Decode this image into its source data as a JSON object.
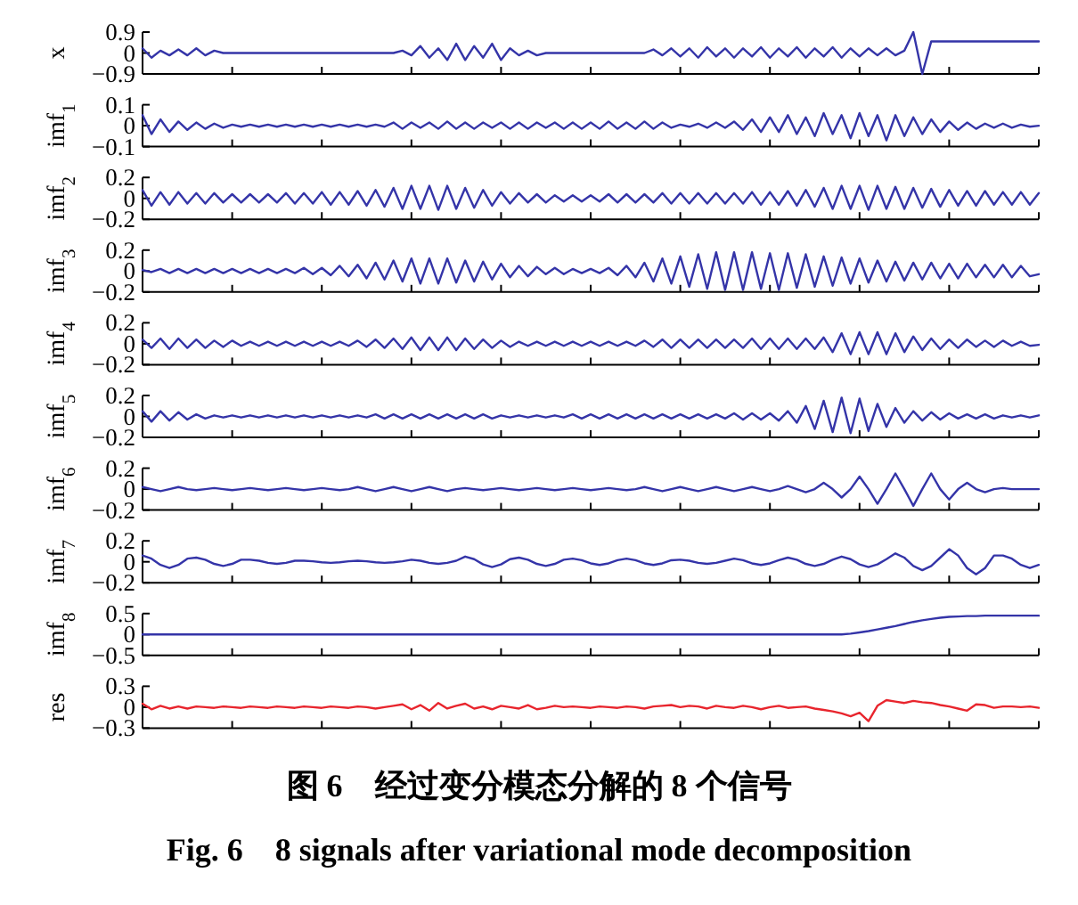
{
  "chart_data": [
    {
      "type": "line",
      "ylabel": "x",
      "categories": [
        null,
        null,
        null,
        null,
        null,
        null,
        null,
        null,
        null,
        null,
        null,
        null,
        null,
        null,
        null,
        null,
        null,
        null,
        null,
        null,
        null,
        null,
        null,
        null,
        null,
        null,
        null,
        null,
        null,
        null,
        null,
        null,
        null,
        null,
        null,
        null,
        null,
        null,
        null,
        null,
        null,
        null,
        null,
        null,
        null,
        null,
        null,
        null,
        null,
        null,
        null,
        null,
        null,
        null,
        null,
        null,
        null,
        null,
        null,
        null,
        null,
        null,
        null,
        null,
        null,
        null,
        null,
        null,
        null,
        null,
        null,
        null,
        null,
        null,
        null,
        null,
        null,
        null,
        null,
        null,
        null,
        null,
        null,
        null,
        null,
        null,
        null,
        null,
        null,
        null,
        null,
        null,
        null,
        null,
        null,
        null,
        null,
        null,
        null,
        null,
        null
      ],
      "ylim": [
        -0.9,
        0.9
      ],
      "yticks": [
        0.9,
        0,
        {
          "value": -0.9,
          "label": "−0.9"
        }
      ],
      "series": [
        {
          "color": "#3434a8",
          "values": [
            0.2,
            -0.2,
            0.1,
            -0.1,
            0.15,
            -0.1,
            0.2,
            -0.1,
            0.1,
            0,
            0,
            0,
            0,
            0,
            0,
            0,
            0,
            0,
            0,
            0,
            0,
            0,
            0,
            0,
            0,
            0,
            0,
            0,
            0,
            0.1,
            -0.1,
            0.3,
            -0.2,
            0.2,
            -0.3,
            0.4,
            -0.3,
            0.3,
            -0.2,
            0.4,
            -0.3,
            0.2,
            -0.1,
            0.1,
            -0.1,
            0,
            0,
            0,
            0,
            0,
            0,
            0,
            0,
            0,
            0,
            0,
            0,
            0.15,
            -0.1,
            0.2,
            -0.15,
            0.2,
            -0.2,
            0.25,
            -0.15,
            0.2,
            -0.2,
            0.2,
            -0.15,
            0.25,
            -0.2,
            0.2,
            -0.15,
            0.25,
            -0.2,
            0.2,
            -0.15,
            0.25,
            -0.2,
            0.2,
            -0.15,
            0.2,
            -0.1,
            0.2,
            -0.1,
            0.1,
            0.9,
            -0.9,
            0.5,
            0.5,
            0.5,
            0.5,
            0.5,
            0.5,
            0.5,
            0.5,
            0.5,
            0.5,
            0.5,
            0.5,
            0.5
          ]
        }
      ]
    },
    {
      "type": "line",
      "ylabel": "imf$_{1}$",
      "categories": [
        null,
        null,
        null,
        null,
        null,
        null,
        null,
        null,
        null,
        null,
        null,
        null,
        null,
        null,
        null,
        null,
        null,
        null,
        null,
        null,
        null,
        null,
        null,
        null,
        null,
        null,
        null,
        null,
        null,
        null,
        null,
        null,
        null,
        null,
        null,
        null,
        null,
        null,
        null,
        null,
        null,
        null,
        null,
        null,
        null,
        null,
        null,
        null,
        null,
        null,
        null,
        null,
        null,
        null,
        null,
        null,
        null,
        null,
        null,
        null,
        null,
        null,
        null,
        null,
        null,
        null,
        null,
        null,
        null,
        null,
        null,
        null,
        null,
        null,
        null,
        null,
        null,
        null,
        null,
        null,
        null,
        null,
        null,
        null,
        null,
        null,
        null,
        null,
        null,
        null,
        null,
        null,
        null,
        null,
        null,
        null,
        null,
        null,
        null,
        null,
        null
      ],
      "ylim": [
        -0.1,
        0.1
      ],
      "yticks": [
        0.1,
        0,
        {
          "value": -0.1,
          "label": "−0.1"
        }
      ],
      "series": [
        {
          "color": "#3434a8",
          "values": [
            0.05,
            -0.04,
            0.03,
            -0.03,
            0.02,
            -0.02,
            0.015,
            -0.015,
            0.01,
            -0.01,
            0.005,
            -0.005,
            0.005,
            -0.005,
            0.005,
            -0.005,
            0.005,
            -0.005,
            0.005,
            -0.005,
            0.005,
            -0.005,
            0.005,
            -0.005,
            0.005,
            -0.005,
            0.005,
            -0.005,
            0.015,
            -0.015,
            0.015,
            -0.01,
            0.015,
            -0.015,
            0.02,
            -0.015,
            0.015,
            -0.015,
            0.015,
            -0.01,
            0.015,
            -0.015,
            0.015,
            -0.015,
            0.015,
            -0.01,
            0.015,
            -0.015,
            0.015,
            -0.015,
            0.015,
            -0.015,
            0.02,
            -0.015,
            0.015,
            -0.015,
            0.02,
            -0.015,
            0.015,
            -0.01,
            0.005,
            -0.005,
            0.01,
            -0.01,
            0.015,
            -0.01,
            0.02,
            -0.02,
            0.03,
            -0.03,
            0.04,
            -0.03,
            0.05,
            -0.04,
            0.04,
            -0.05,
            0.06,
            -0.04,
            0.05,
            -0.06,
            0.06,
            -0.05,
            0.05,
            -0.07,
            0.05,
            -0.05,
            0.04,
            -0.04,
            0.03,
            -0.03,
            0.02,
            -0.02,
            0.015,
            -0.015,
            0.01,
            -0.01,
            0.01,
            -0.01,
            0.005,
            -0.005,
            0
          ]
        }
      ]
    },
    {
      "type": "line",
      "ylabel": "imf$_{2}$",
      "categories": [
        null,
        null,
        null,
        null,
        null,
        null,
        null,
        null,
        null,
        null,
        null,
        null,
        null,
        null,
        null,
        null,
        null,
        null,
        null,
        null,
        null,
        null,
        null,
        null,
        null,
        null,
        null,
        null,
        null,
        null,
        null,
        null,
        null,
        null,
        null,
        null,
        null,
        null,
        null,
        null,
        null,
        null,
        null,
        null,
        null,
        null,
        null,
        null,
        null,
        null,
        null,
        null,
        null,
        null,
        null,
        null,
        null,
        null,
        null,
        null,
        null,
        null,
        null,
        null,
        null,
        null,
        null,
        null,
        null,
        null,
        null,
        null,
        null,
        null,
        null,
        null,
        null,
        null,
        null,
        null,
        null,
        null,
        null,
        null,
        null,
        null,
        null,
        null,
        null,
        null,
        null,
        null,
        null,
        null,
        null,
        null,
        null,
        null,
        null,
        null,
        null
      ],
      "ylim": [
        -0.2,
        0.2
      ],
      "yticks": [
        0.2,
        0,
        {
          "value": -0.2,
          "label": "−0.2"
        }
      ],
      "series": [
        {
          "color": "#3434a8",
          "values": [
            0.08,
            -0.07,
            0.06,
            -0.06,
            0.06,
            -0.05,
            0.05,
            -0.05,
            0.05,
            -0.04,
            0.04,
            -0.04,
            0.04,
            -0.04,
            0.04,
            -0.04,
            0.05,
            -0.05,
            0.05,
            -0.05,
            0.06,
            -0.06,
            0.06,
            -0.06,
            0.07,
            -0.07,
            0.08,
            -0.08,
            0.1,
            -0.1,
            0.12,
            -0.1,
            0.12,
            -0.11,
            0.12,
            -0.1,
            0.1,
            -0.09,
            0.08,
            -0.07,
            0.06,
            -0.05,
            0.05,
            -0.04,
            0.04,
            -0.04,
            0.03,
            -0.03,
            0.03,
            -0.03,
            0.03,
            -0.03,
            0.04,
            -0.04,
            0.04,
            -0.04,
            0.04,
            -0.04,
            0.05,
            -0.05,
            0.05,
            -0.05,
            0.05,
            -0.05,
            0.05,
            -0.05,
            0.05,
            -0.05,
            0.06,
            -0.06,
            0.06,
            -0.06,
            0.07,
            -0.07,
            0.08,
            -0.08,
            0.1,
            -0.1,
            0.12,
            -0.1,
            0.12,
            -0.11,
            0.12,
            -0.1,
            0.11,
            -0.1,
            0.1,
            -0.09,
            0.09,
            -0.08,
            0.08,
            -0.07,
            0.07,
            -0.07,
            0.07,
            -0.06,
            0.06,
            -0.06,
            0.06,
            -0.06,
            0.05
          ]
        }
      ]
    },
    {
      "type": "line",
      "ylabel": "imf$_{3}$",
      "categories": [
        null,
        null,
        null,
        null,
        null,
        null,
        null,
        null,
        null,
        null,
        null,
        null,
        null,
        null,
        null,
        null,
        null,
        null,
        null,
        null,
        null,
        null,
        null,
        null,
        null,
        null,
        null,
        null,
        null,
        null,
        null,
        null,
        null,
        null,
        null,
        null,
        null,
        null,
        null,
        null,
        null,
        null,
        null,
        null,
        null,
        null,
        null,
        null,
        null,
        null,
        null,
        null,
        null,
        null,
        null,
        null,
        null,
        null,
        null,
        null,
        null,
        null,
        null,
        null,
        null,
        null,
        null,
        null,
        null,
        null,
        null,
        null,
        null,
        null,
        null,
        null,
        null,
        null,
        null,
        null,
        null,
        null,
        null,
        null,
        null,
        null,
        null,
        null,
        null,
        null,
        null,
        null,
        null,
        null,
        null,
        null,
        null,
        null,
        null,
        null,
        null
      ],
      "ylim": [
        -0.2,
        0.2
      ],
      "yticks": [
        0.2,
        0,
        {
          "value": -0.2,
          "label": "−0.2"
        }
      ],
      "series": [
        {
          "color": "#3434a8",
          "values": [
            0.01,
            -0.01,
            0.02,
            -0.02,
            0.02,
            -0.02,
            0.02,
            -0.02,
            0.02,
            -0.02,
            0.02,
            -0.02,
            0.02,
            -0.02,
            0.02,
            -0.02,
            0.02,
            -0.02,
            0.03,
            -0.03,
            0.03,
            -0.04,
            0.05,
            -0.05,
            0.06,
            -0.07,
            0.08,
            -0.08,
            0.1,
            -0.1,
            0.12,
            -0.12,
            0.12,
            -0.12,
            0.12,
            -0.11,
            0.1,
            -0.1,
            0.09,
            -0.08,
            0.07,
            -0.06,
            0.05,
            -0.05,
            0.04,
            -0.03,
            0.03,
            -0.03,
            0.02,
            -0.02,
            0.02,
            -0.02,
            0.03,
            -0.04,
            0.05,
            -0.06,
            0.08,
            -0.1,
            0.12,
            -0.12,
            0.14,
            -0.15,
            0.16,
            -0.17,
            0.18,
            -0.18,
            0.18,
            -0.18,
            0.18,
            -0.17,
            0.17,
            -0.18,
            0.17,
            -0.16,
            0.16,
            -0.15,
            0.14,
            -0.14,
            0.13,
            -0.12,
            0.12,
            -0.11,
            0.1,
            -0.1,
            0.09,
            -0.09,
            0.08,
            -0.08,
            0.08,
            -0.07,
            0.07,
            -0.07,
            0.07,
            -0.06,
            0.06,
            -0.06,
            0.06,
            -0.06,
            0.05,
            -0.05,
            -0.03
          ]
        }
      ]
    },
    {
      "type": "line",
      "ylabel": "imf$_{4}$",
      "categories": [
        null,
        null,
        null,
        null,
        null,
        null,
        null,
        null,
        null,
        null,
        null,
        null,
        null,
        null,
        null,
        null,
        null,
        null,
        null,
        null,
        null,
        null,
        null,
        null,
        null,
        null,
        null,
        null,
        null,
        null,
        null,
        null,
        null,
        null,
        null,
        null,
        null,
        null,
        null,
        null,
        null,
        null,
        null,
        null,
        null,
        null,
        null,
        null,
        null,
        null,
        null,
        null,
        null,
        null,
        null,
        null,
        null,
        null,
        null,
        null,
        null,
        null,
        null,
        null,
        null,
        null,
        null,
        null,
        null,
        null,
        null,
        null,
        null,
        null,
        null,
        null,
        null,
        null,
        null,
        null,
        null,
        null,
        null,
        null,
        null,
        null,
        null,
        null,
        null,
        null,
        null,
        null,
        null,
        null,
        null,
        null,
        null,
        null,
        null,
        null,
        null
      ],
      "ylim": [
        -0.2,
        0.2
      ],
      "yticks": [
        0.2,
        0,
        {
          "value": -0.2,
          "label": "−0.2"
        }
      ],
      "series": [
        {
          "color": "#3434a8",
          "values": [
            0.04,
            -0.04,
            0.05,
            -0.05,
            0.05,
            -0.04,
            0.04,
            -0.04,
            0.03,
            -0.03,
            0.03,
            -0.02,
            0.02,
            -0.02,
            0.02,
            -0.02,
            0.02,
            -0.02,
            0.02,
            -0.02,
            0.02,
            -0.02,
            0.02,
            -0.02,
            0.03,
            -0.03,
            0.04,
            -0.04,
            0.05,
            -0.05,
            0.06,
            -0.06,
            0.06,
            -0.06,
            0.06,
            -0.06,
            0.05,
            -0.05,
            0.04,
            -0.04,
            0.03,
            -0.03,
            0.02,
            -0.02,
            0.02,
            -0.02,
            0.02,
            -0.02,
            0.02,
            -0.02,
            0.02,
            -0.02,
            0.02,
            -0.02,
            0.02,
            -0.02,
            0.03,
            -0.03,
            0.04,
            -0.04,
            0.04,
            -0.04,
            0.04,
            -0.04,
            0.04,
            -0.04,
            0.04,
            -0.04,
            0.05,
            -0.05,
            0.05,
            -0.05,
            0.05,
            -0.05,
            0.05,
            -0.05,
            0.06,
            -0.08,
            0.1,
            -0.1,
            0.11,
            -0.1,
            0.11,
            -0.1,
            0.1,
            -0.08,
            0.07,
            -0.06,
            0.05,
            -0.05,
            0.04,
            -0.04,
            0.04,
            -0.03,
            0.03,
            -0.03,
            0.03,
            -0.02,
            0.02,
            -0.02,
            -0.01
          ]
        }
      ]
    },
    {
      "type": "line",
      "ylabel": "imf$_{5}$",
      "categories": [
        null,
        null,
        null,
        null,
        null,
        null,
        null,
        null,
        null,
        null,
        null,
        null,
        null,
        null,
        null,
        null,
        null,
        null,
        null,
        null,
        null,
        null,
        null,
        null,
        null,
        null,
        null,
        null,
        null,
        null,
        null,
        null,
        null,
        null,
        null,
        null,
        null,
        null,
        null,
        null,
        null,
        null,
        null,
        null,
        null,
        null,
        null,
        null,
        null,
        null,
        null,
        null,
        null,
        null,
        null,
        null,
        null,
        null,
        null,
        null,
        null,
        null,
        null,
        null,
        null,
        null,
        null,
        null,
        null,
        null,
        null,
        null,
        null,
        null,
        null,
        null,
        null,
        null,
        null,
        null,
        null,
        null,
        null,
        null,
        null,
        null,
        null,
        null,
        null,
        null,
        null,
        null,
        null,
        null,
        null,
        null,
        null,
        null,
        null,
        null,
        null
      ],
      "ylim": [
        -0.2,
        0.2
      ],
      "yticks": [
        0.2,
        0,
        {
          "value": -0.2,
          "label": "−0.2"
        }
      ],
      "series": [
        {
          "color": "#3434a8",
          "values": [
            0.05,
            -0.05,
            0.05,
            -0.04,
            0.04,
            -0.03,
            0.02,
            -0.02,
            0.01,
            -0.01,
            0.01,
            -0.01,
            0.01,
            -0.01,
            0.01,
            -0.01,
            0.01,
            -0.01,
            0.01,
            -0.01,
            0.01,
            -0.01,
            0.01,
            -0.01,
            0.01,
            -0.01,
            0.02,
            -0.02,
            0.02,
            -0.02,
            0.02,
            -0.02,
            0.02,
            -0.02,
            0.02,
            -0.02,
            0.02,
            -0.02,
            0.02,
            -0.02,
            0.01,
            -0.01,
            0.01,
            -0.01,
            0.01,
            -0.01,
            0.01,
            -0.01,
            0.02,
            -0.02,
            0.02,
            -0.02,
            0.02,
            -0.02,
            0.02,
            -0.02,
            0.02,
            -0.02,
            0.02,
            -0.02,
            0.02,
            -0.02,
            0.02,
            -0.02,
            0.02,
            -0.02,
            0.03,
            -0.03,
            0.03,
            -0.03,
            0.03,
            -0.04,
            0.05,
            -0.06,
            0.1,
            -0.12,
            0.15,
            -0.15,
            0.18,
            -0.16,
            0.17,
            -0.14,
            0.12,
            -0.1,
            0.08,
            -0.06,
            0.05,
            -0.04,
            0.04,
            -0.03,
            0.03,
            -0.02,
            0.02,
            -0.02,
            0.02,
            -0.02,
            0.01,
            -0.01,
            0.01,
            -0.01,
            0.01
          ]
        }
      ]
    },
    {
      "type": "line",
      "ylabel": "imf$_{6}$",
      "categories": [
        null,
        null,
        null,
        null,
        null,
        null,
        null,
        null,
        null,
        null,
        null,
        null,
        null,
        null,
        null,
        null,
        null,
        null,
        null,
        null,
        null,
        null,
        null,
        null,
        null,
        null,
        null,
        null,
        null,
        null,
        null,
        null,
        null,
        null,
        null,
        null,
        null,
        null,
        null,
        null,
        null,
        null,
        null,
        null,
        null,
        null,
        null,
        null,
        null,
        null,
        null,
        null,
        null,
        null,
        null,
        null,
        null,
        null,
        null,
        null,
        null,
        null,
        null,
        null,
        null,
        null,
        null,
        null,
        null,
        null,
        null,
        null,
        null,
        null,
        null,
        null,
        null,
        null,
        null,
        null,
        null,
        null,
        null,
        null,
        null,
        null,
        null,
        null,
        null,
        null,
        null,
        null,
        null,
        null,
        null,
        null,
        null,
        null,
        null,
        null,
        null
      ],
      "ylim": [
        -0.2,
        0.2
      ],
      "yticks": [
        0.2,
        0,
        {
          "value": -0.2,
          "label": "−0.2"
        }
      ],
      "series": [
        {
          "color": "#3434a8",
          "values": [
            0.02,
            0,
            -0.02,
            0,
            0.02,
            0,
            -0.01,
            0,
            0.01,
            0,
            -0.01,
            0,
            0.01,
            0,
            -0.01,
            0,
            0.01,
            0,
            -0.01,
            0,
            0.01,
            0,
            -0.01,
            0,
            0.02,
            0,
            -0.02,
            0,
            0.02,
            0,
            -0.02,
            0,
            0.02,
            0,
            -0.02,
            0,
            0.01,
            0,
            -0.01,
            0,
            0.01,
            0,
            -0.01,
            0,
            0.01,
            0,
            -0.01,
            0,
            0.01,
            0,
            -0.01,
            0,
            0.01,
            0,
            -0.01,
            0,
            0.02,
            0,
            -0.02,
            0,
            0.02,
            0,
            -0.02,
            0,
            0.02,
            0,
            -0.02,
            0,
            0.02,
            0,
            -0.02,
            0,
            0.03,
            0,
            -0.03,
            0,
            0.06,
            0,
            -0.08,
            0,
            0.12,
            0,
            -0.14,
            0,
            0.15,
            0,
            -0.16,
            0,
            0.15,
            0,
            -0.1,
            0,
            0.06,
            0,
            -0.03,
            0,
            0.01,
            0,
            0,
            0,
            0
          ]
        }
      ]
    },
    {
      "type": "line",
      "ylabel": "imf$_{7}$",
      "categories": [
        null,
        null,
        null,
        null,
        null,
        null,
        null,
        null,
        null,
        null,
        null,
        null,
        null,
        null,
        null,
        null,
        null,
        null,
        null,
        null,
        null,
        null,
        null,
        null,
        null,
        null,
        null,
        null,
        null,
        null,
        null,
        null,
        null,
        null,
        null,
        null,
        null,
        null,
        null,
        null,
        null,
        null,
        null,
        null,
        null,
        null,
        null,
        null,
        null,
        null,
        null,
        null,
        null,
        null,
        null,
        null,
        null,
        null,
        null,
        null,
        null,
        null,
        null,
        null,
        null,
        null,
        null,
        null,
        null,
        null,
        null,
        null,
        null,
        null,
        null,
        null,
        null,
        null,
        null,
        null,
        null,
        null,
        null,
        null,
        null,
        null,
        null,
        null,
        null,
        null,
        null,
        null,
        null,
        null,
        null,
        null,
        null,
        null,
        null,
        null,
        null
      ],
      "ylim": [
        -0.2,
        0.2
      ],
      "yticks": [
        0.2,
        0,
        {
          "value": -0.2,
          "label": "−0.2"
        }
      ],
      "series": [
        {
          "color": "#3434a8",
          "values": [
            0.06,
            0.03,
            -0.03,
            -0.06,
            -0.03,
            0.03,
            0.04,
            0.02,
            -0.02,
            -0.04,
            -0.02,
            0.02,
            0.02,
            0.01,
            -0.01,
            -0.02,
            -0.01,
            0.01,
            0.01,
            0.005,
            -0.005,
            -0.01,
            -0.005,
            0.005,
            0.01,
            0.005,
            -0.005,
            -0.01,
            -0.005,
            0.005,
            0.02,
            0.01,
            -0.01,
            -0.02,
            -0.01,
            0.01,
            0.05,
            0.025,
            -0.025,
            -0.05,
            -0.025,
            0.025,
            0.04,
            0.02,
            -0.02,
            -0.04,
            -0.02,
            0.02,
            0.03,
            0.015,
            -0.015,
            -0.03,
            -0.015,
            0.015,
            0.03,
            0.015,
            -0.015,
            -0.03,
            -0.015,
            0.015,
            0.02,
            0.01,
            -0.01,
            -0.02,
            -0.01,
            0.01,
            0.03,
            0.015,
            -0.015,
            -0.03,
            -0.015,
            0.015,
            0.04,
            0.02,
            -0.02,
            -0.04,
            -0.02,
            0.02,
            0.05,
            0.025,
            -0.025,
            -0.05,
            -0.025,
            0.025,
            0.08,
            0.04,
            -0.04,
            -0.08,
            -0.04,
            0.04,
            0.12,
            0.06,
            -0.06,
            -0.12,
            -0.06,
            0.06,
            0.06,
            0.03,
            -0.03,
            -0.06,
            -0.03
          ]
        }
      ]
    },
    {
      "type": "line",
      "ylabel": "imf$_{8}$",
      "categories": [
        null,
        null,
        null,
        null,
        null,
        null,
        null,
        null,
        null,
        null,
        null,
        null,
        null,
        null,
        null,
        null,
        null,
        null,
        null,
        null,
        null,
        null,
        null,
        null,
        null,
        null,
        null,
        null,
        null,
        null,
        null,
        null,
        null,
        null,
        null,
        null,
        null,
        null,
        null,
        null,
        null,
        null,
        null,
        null,
        null,
        null,
        null,
        null,
        null,
        null,
        null,
        null,
        null,
        null,
        null,
        null,
        null,
        null,
        null,
        null,
        null,
        null,
        null,
        null,
        null,
        null,
        null,
        null,
        null,
        null,
        null,
        null,
        null,
        null,
        null,
        null,
        null,
        null,
        null,
        null,
        null,
        null,
        null,
        null,
        null,
        null,
        null,
        null,
        null,
        null,
        null,
        null,
        null,
        null,
        null,
        null,
        null,
        null,
        null,
        null,
        null
      ],
      "ylim": [
        -0.5,
        0.5
      ],
      "yticks": [
        0.5,
        0,
        {
          "value": -0.5,
          "label": "−0.5"
        }
      ],
      "series": [
        {
          "color": "#3434a8",
          "values": [
            0,
            0,
            0,
            0,
            0,
            0,
            0,
            0,
            0,
            0,
            0,
            0,
            0,
            0,
            0,
            0,
            0,
            0,
            0,
            0,
            0,
            0,
            0,
            0,
            0,
            0,
            0,
            0,
            0,
            0,
            0,
            0,
            0,
            0,
            0,
            0,
            0,
            0,
            0,
            0,
            0,
            0,
            0,
            0,
            0,
            0,
            0,
            0,
            0,
            0,
            0,
            0,
            0,
            0,
            0,
            0,
            0,
            0,
            0,
            0,
            0,
            0,
            0,
            0,
            0,
            0,
            0,
            0,
            0,
            0,
            0,
            0,
            0,
            0,
            0,
            0,
            0,
            0,
            0,
            0.02,
            0.05,
            0.08,
            0.12,
            0.16,
            0.2,
            0.25,
            0.3,
            0.34,
            0.37,
            0.4,
            0.42,
            0.43,
            0.44,
            0.44,
            0.45,
            0.45,
            0.45,
            0.45,
            0.45,
            0.45,
            0.45
          ]
        }
      ]
    },
    {
      "type": "line",
      "ylabel": "res",
      "categories": [
        null,
        null,
        null,
        null,
        null,
        null,
        null,
        null,
        null,
        null,
        null,
        null,
        null,
        null,
        null,
        null,
        null,
        null,
        null,
        null,
        null,
        null,
        null,
        null,
        null,
        null,
        null,
        null,
        null,
        null,
        null,
        null,
        null,
        null,
        null,
        null,
        null,
        null,
        null,
        null,
        null,
        null,
        null,
        null,
        null,
        null,
        null,
        null,
        null,
        null,
        null,
        null,
        null,
        null,
        null,
        null,
        null,
        null,
        null,
        null,
        null,
        null,
        null,
        null,
        null,
        null,
        null,
        null,
        null,
        null,
        null,
        null,
        null,
        null,
        null,
        null,
        null,
        null,
        null,
        null,
        null,
        null,
        null,
        null,
        null,
        null,
        null,
        null,
        null,
        null,
        null,
        null,
        null,
        null,
        null,
        null,
        null,
        null,
        null,
        null,
        null
      ],
      "ylim": [
        -0.3,
        0.3
      ],
      "yticks": [
        0.3,
        0,
        {
          "value": -0.3,
          "label": "−0.3"
        }
      ],
      "series": [
        {
          "color": "#e8252d",
          "values": [
            0.05,
            -0.03,
            0.02,
            -0.02,
            0.01,
            -0.02,
            0.01,
            0,
            -0.01,
            0.01,
            0,
            -0.01,
            0.01,
            0,
            -0.01,
            0.01,
            0,
            -0.01,
            0.01,
            0,
            -0.01,
            0.01,
            0,
            -0.01,
            0.01,
            0,
            -0.02,
            0,
            0.02,
            0.04,
            -0.03,
            0.03,
            -0.05,
            0.06,
            -0.02,
            0.02,
            0.05,
            -0.02,
            0.01,
            -0.03,
            0.02,
            0,
            -0.02,
            0.03,
            -0.03,
            -0.01,
            0.02,
            0,
            0.01,
            0,
            -0.01,
            0.01,
            0,
            -0.01,
            0.01,
            0,
            -0.02,
            0.01,
            0.02,
            0.03,
            0,
            0.02,
            0.01,
            -0.02,
            0.02,
            0,
            -0.01,
            0.02,
            0,
            -0.03,
            0,
            0.02,
            -0.01,
            0,
            0.01,
            -0.02,
            -0.04,
            -0.06,
            -0.09,
            -0.13,
            -0.08,
            -0.2,
            0.02,
            0.1,
            0.08,
            0.06,
            0.09,
            0.07,
            0.06,
            0.03,
            0.01,
            -0.02,
            -0.05,
            0.04,
            0.03,
            -0.01,
            0.01,
            0.01,
            0,
            0.01,
            -0.01
          ]
        }
      ],
      "annotations": [
        "图 6　经过变分模态分解的 8 个信号",
        "Fig. 6　8 signals after variational mode decomposition"
      ]
    }
  ]
}
